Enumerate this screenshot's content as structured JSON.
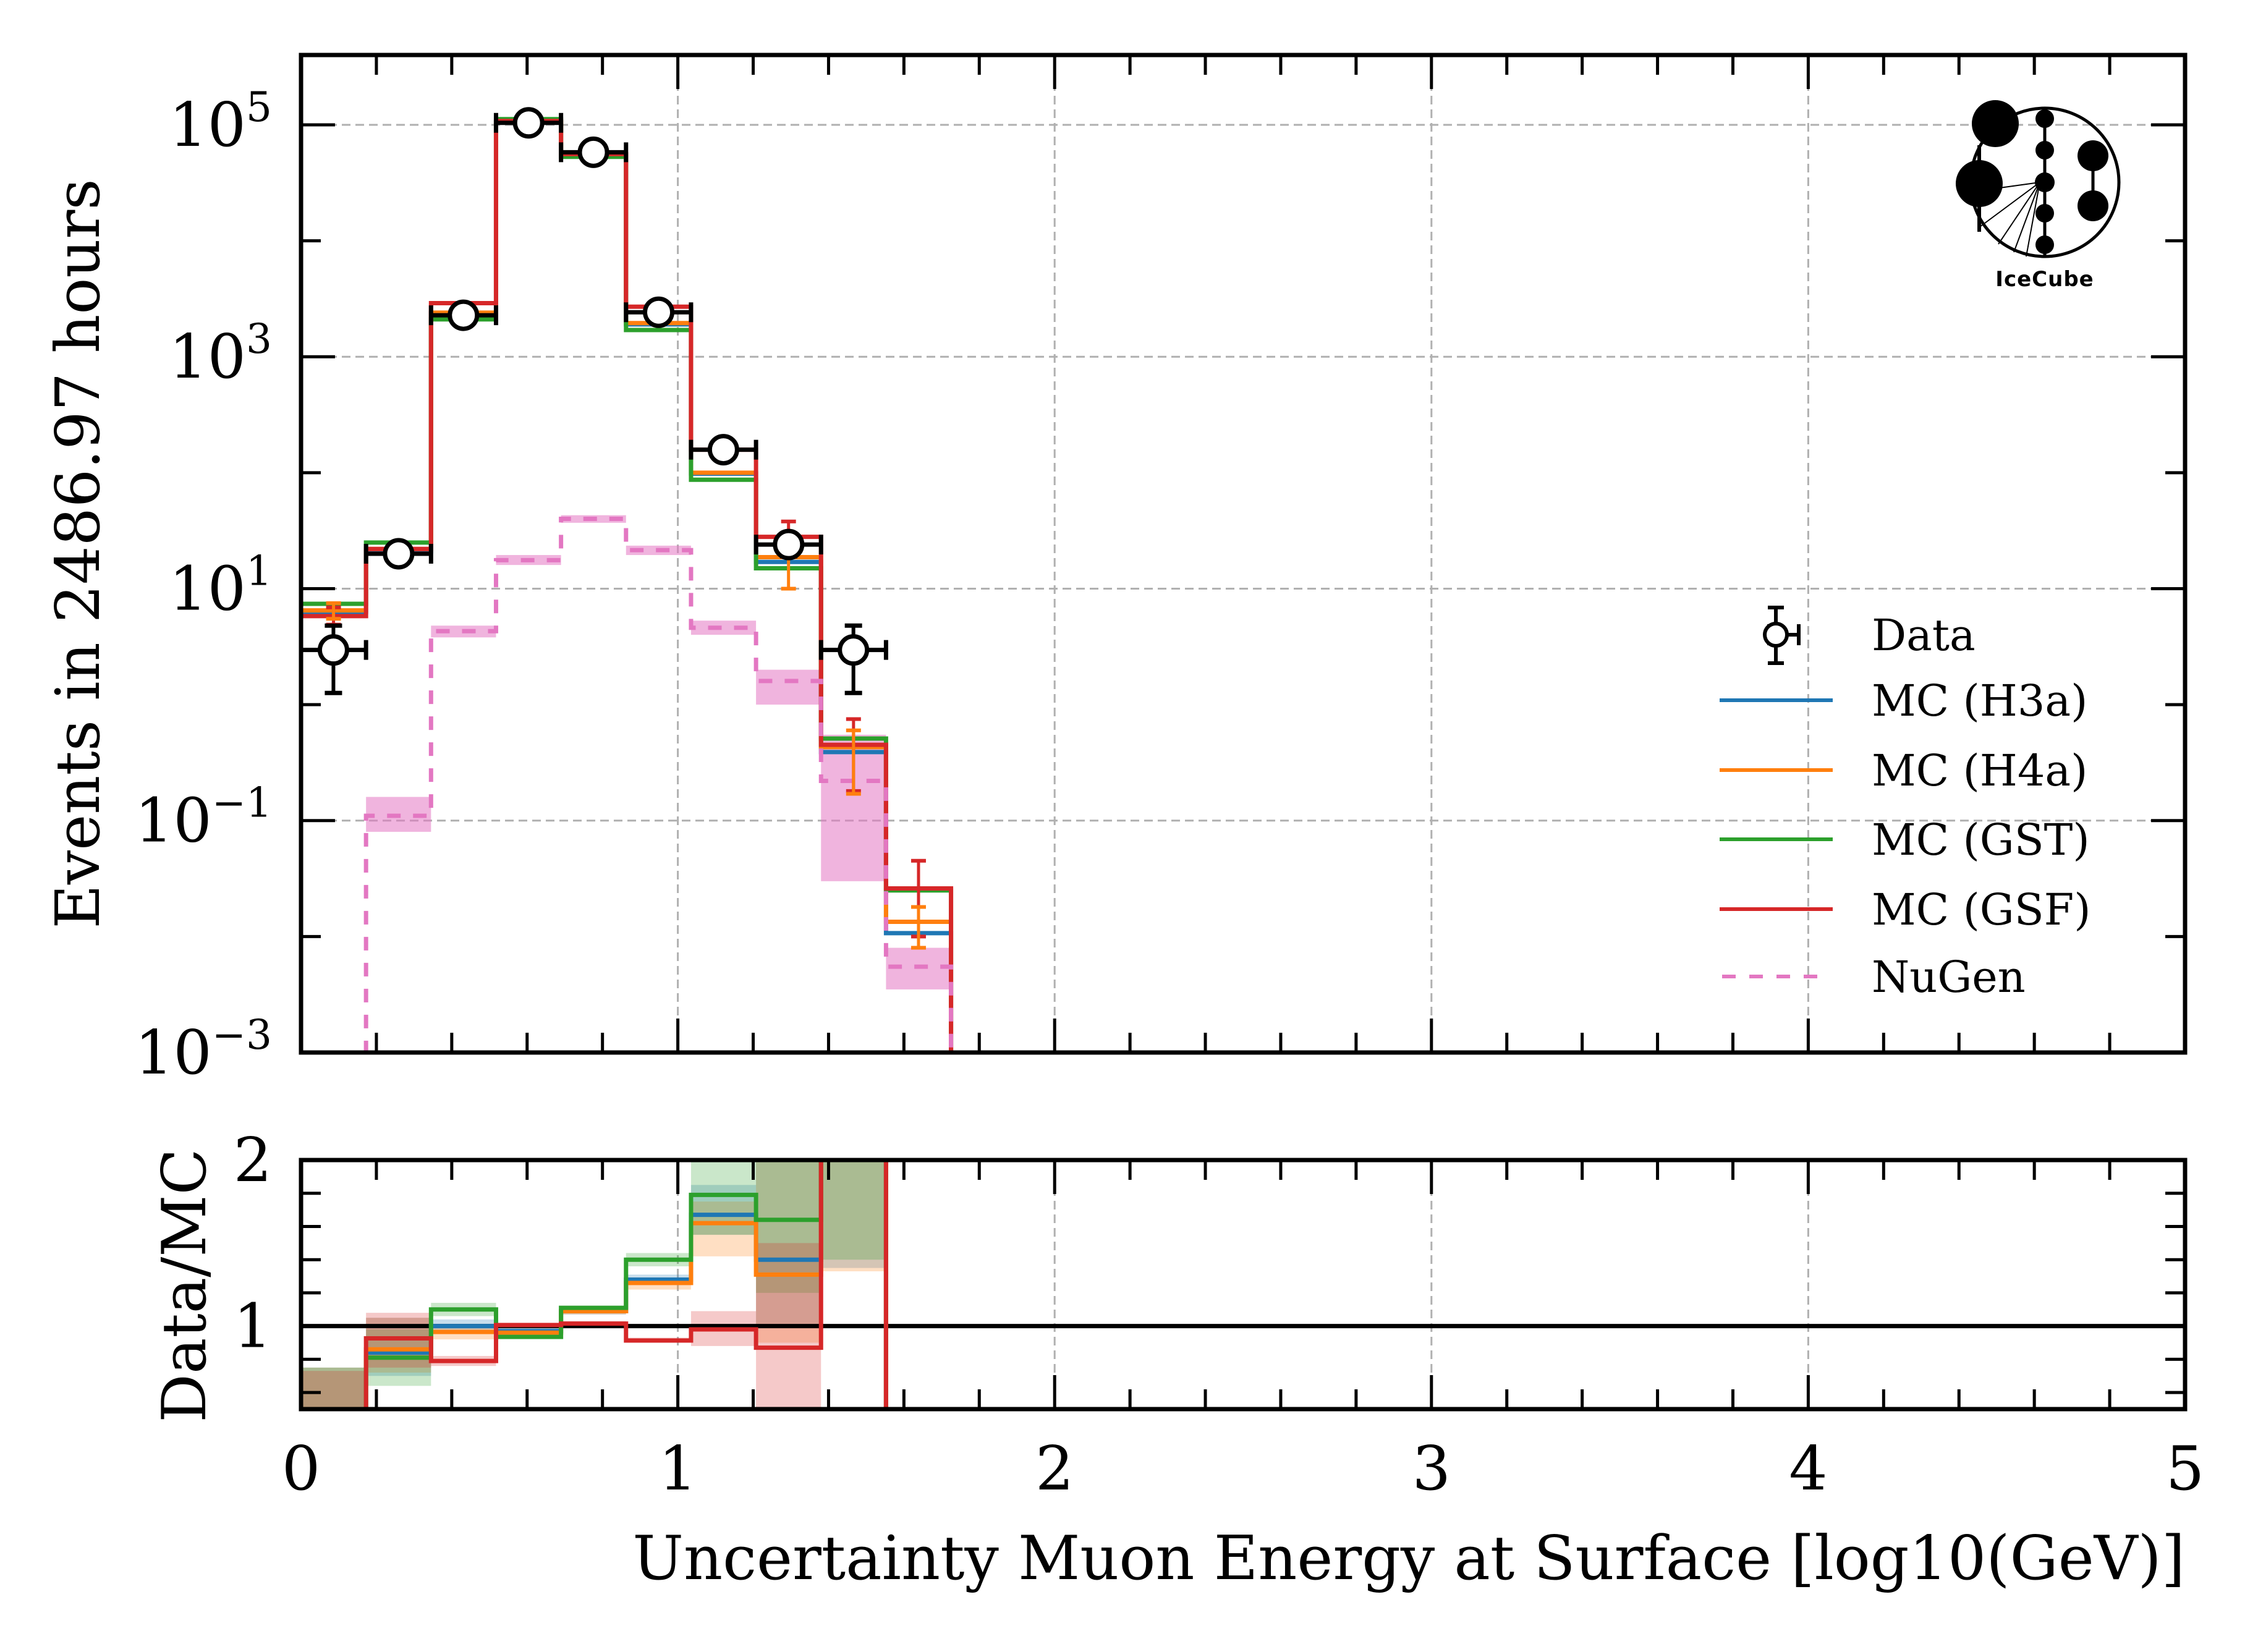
{
  "chart_data": [
    {
      "panel": "main",
      "type": "line",
      "subtype": "step-histogram",
      "title": "",
      "xlabel": "Uncertainty Muon Energy at Surface [log10(GeV)]",
      "ylabel": "Events in 2486.97 hours",
      "xlim": [
        0,
        5
      ],
      "ylim": [
        0.001,
        400000
      ],
      "yscale": "log",
      "grid": true,
      "legend_position": "center-right",
      "y_ticks": [
        {
          "base": "10",
          "exp": "5",
          "value": 100000
        },
        {
          "base": "10",
          "exp": "3",
          "value": 1000
        },
        {
          "base": "10",
          "exp": "1",
          "value": 10
        },
        {
          "base": "10",
          "exp": "−1",
          "value": 0.1
        },
        {
          "base": "10",
          "exp": "−3",
          "value": 0.001
        }
      ],
      "bin_edges": [
        0,
        0.1725,
        0.345,
        0.5175,
        0.69,
        0.8625,
        1.035,
        1.2075,
        1.38,
        1.5525,
        1.725
      ],
      "series": [
        {
          "name": "MC (H3a)",
          "color": "#1f77b4",
          "style": "solid",
          "values": [
            6.3,
            21,
            2350,
            106000,
            55000,
            1900,
            98,
            17,
            0.39,
            0.0107
          ]
        },
        {
          "name": "MC (H4a)",
          "color": "#ff7f0e",
          "style": "solid",
          "values": [
            6.5,
            22,
            2400,
            105000,
            55000,
            1950,
            100,
            18.7,
            0.43,
            0.0134
          ]
        },
        {
          "name": "MC (GST)",
          "color": "#2ca02c",
          "style": "solid",
          "values": [
            7.4,
            25,
            2100,
            112000,
            53000,
            1700,
            87,
            15,
            0.51,
            0.025
          ]
        },
        {
          "name": "MC (GSF)",
          "color": "#d62728",
          "style": "solid",
          "values": [
            5.8,
            22,
            2900,
            108000,
            56000,
            2700,
            158,
            28,
            0.45,
            0.026
          ]
        },
        {
          "name": "NuGen",
          "color": "#e377c2",
          "style": "dashed",
          "values": [
            null,
            0.11,
            4.3,
            17.6,
            40,
            21.5,
            4.6,
            1.6,
            0.22,
            0.0055
          ],
          "band_low": [
            null,
            0.08,
            3.8,
            16,
            37,
            19.5,
            4.0,
            1.0,
            0.03,
            0.0035
          ],
          "band_high": [
            null,
            0.16,
            4.8,
            19.5,
            43,
            23.5,
            5.3,
            2.0,
            0.55,
            0.008
          ]
        }
      ],
      "data_points": {
        "name": "Data",
        "x": [
          0.086,
          0.259,
          0.431,
          0.604,
          0.776,
          0.949,
          1.121,
          1.294,
          1.466
        ],
        "y": [
          2.96,
          20,
          2280,
          104000,
          58000,
          2420,
          158,
          24,
          2.96
        ],
        "yerr_low": [
          1.26,
          16,
          2230,
          103700,
          57750,
          2370,
          146,
          19,
          1.26
        ],
        "yerr_high": [
          4.8,
          25,
          2330,
          104300,
          58250,
          2470,
          171,
          29.5,
          4.8
        ]
      },
      "mc_errorbars": {
        "bin_index": [
          0,
          7,
          8,
          9
        ],
        "GSF": [
          [
            4.9,
            6.9
          ],
          [
            20,
            38
          ],
          [
            0.18,
            0.75
          ],
          [
            0.01,
            0.045
          ]
        ],
        "H4a": [
          [
            5.5,
            7.5
          ],
          [
            10,
            30
          ],
          [
            0.17,
            0.6
          ],
          [
            0.008,
            0.018
          ]
        ]
      }
    },
    {
      "panel": "ratio",
      "type": "line",
      "subtype": "step-histogram",
      "xlabel": "Uncertainty Muon Energy at Surface [log10(GeV)]",
      "ylabel": "Data/MC",
      "xlim": [
        0,
        5
      ],
      "ylim": [
        0.5,
        2
      ],
      "x_ticks": [
        "0",
        "1",
        "2",
        "3",
        "4",
        "5"
      ],
      "y_ticks": [
        "1",
        "2"
      ],
      "reference_line": 1,
      "bin_edges": [
        0,
        0.1725,
        0.345,
        0.5175,
        0.69,
        0.8625,
        1.035,
        1.2075,
        1.38,
        1.5525
      ],
      "series": [
        {
          "name": "MC (H3a)",
          "color": "#1f77b4",
          "values": [
            0.45,
            0.84,
            1.0,
            0.97,
            1.09,
            1.28,
            1.67,
            1.4,
            2.5
          ],
          "band_low": [
            0.45,
            0.7,
            0.97,
            0.95,
            1.07,
            1.25,
            1.55,
            1.0,
            1.35
          ],
          "band_high": [
            0.75,
            1.05,
            1.04,
            0.99,
            1.11,
            1.31,
            1.85,
            2.1,
            2.5
          ]
        },
        {
          "name": "MC (H4a)",
          "color": "#ff7f0e",
          "values": [
            0.45,
            0.86,
            0.965,
            0.96,
            1.09,
            1.26,
            1.62,
            1.31,
            2.5
          ],
          "band_low": [
            0.45,
            0.72,
            0.92,
            0.95,
            1.07,
            1.22,
            1.42,
            0.9,
            1.33
          ],
          "band_high": [
            0.75,
            1.05,
            1.0,
            0.98,
            1.11,
            1.29,
            1.75,
            2.1,
            2.5
          ]
        },
        {
          "name": "MC (GST)",
          "color": "#2ca02c",
          "values": [
            0.45,
            0.81,
            1.1,
            0.935,
            1.11,
            1.4,
            1.79,
            1.64,
            2.5
          ],
          "band_low": [
            0.45,
            0.64,
            1.06,
            0.93,
            1.1,
            1.36,
            1.55,
            1.2,
            1.4
          ],
          "band_high": [
            0.75,
            0.98,
            1.14,
            0.94,
            1.12,
            1.44,
            2.1,
            2.5,
            2.5
          ]
        },
        {
          "name": "MC (GSF)",
          "color": "#d62728",
          "values": [
            0.5,
            0.926,
            0.79,
            1.006,
            1.015,
            0.913,
            0.98,
            0.87,
            2.5
          ],
          "band_low": [
            0.5,
            0.75,
            0.76,
            0.99,
            1.0,
            0.9,
            0.88,
            0.5,
            2.0
          ],
          "band_high": [
            0.73,
            1.08,
            0.82,
            1.02,
            1.03,
            0.93,
            1.09,
            1.5,
            2.5
          ]
        }
      ]
    }
  ],
  "logo": {
    "text": "IceCube"
  }
}
